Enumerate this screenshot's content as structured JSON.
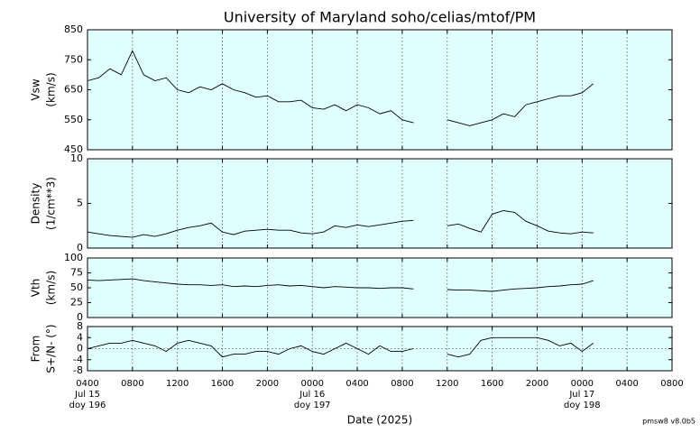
{
  "title": "University of Maryland  soho/celias/mtof/PM",
  "footer": "pmsw8 v8.0b5",
  "chart_data": [
    {
      "type": "line",
      "ylabel": [
        "Vsw",
        "(km/s)"
      ],
      "ylim": [
        450,
        850
      ],
      "yticks": [
        450,
        550,
        650,
        750,
        850
      ],
      "color": "#000000",
      "background": "#e0ffff",
      "x": [
        "2025-07-15 04:00",
        "2025-07-15 05:00",
        "2025-07-15 06:00",
        "2025-07-15 07:00",
        "2025-07-15 08:00",
        "2025-07-15 09:00",
        "2025-07-15 10:00",
        "2025-07-15 11:00",
        "2025-07-15 12:00",
        "2025-07-15 13:00",
        "2025-07-15 14:00",
        "2025-07-15 15:00",
        "2025-07-15 16:00",
        "2025-07-15 17:00",
        "2025-07-15 18:00",
        "2025-07-15 19:00",
        "2025-07-15 20:00",
        "2025-07-15 21:00",
        "2025-07-15 22:00",
        "2025-07-15 23:00",
        "2025-07-16 00:00",
        "2025-07-16 01:00",
        "2025-07-16 02:00",
        "2025-07-16 03:00",
        "2025-07-16 04:00",
        "2025-07-16 05:00",
        "2025-07-16 06:00",
        "2025-07-16 07:00",
        "2025-07-16 08:00",
        "2025-07-16 09:00",
        "2025-07-16 10:00",
        "2025-07-16 11:00",
        "2025-07-16 12:00",
        "2025-07-16 13:00",
        "2025-07-16 14:00",
        "2025-07-16 15:00",
        "2025-07-16 16:00",
        "2025-07-16 17:00",
        "2025-07-16 18:00",
        "2025-07-16 19:00",
        "2025-07-16 20:00",
        "2025-07-16 21:00",
        "2025-07-16 22:00",
        "2025-07-16 23:00",
        "2025-07-17 00:00",
        "2025-07-17 01:00"
      ],
      "values": [
        680,
        690,
        720,
        700,
        780,
        700,
        680,
        690,
        650,
        640,
        660,
        650,
        670,
        650,
        640,
        625,
        630,
        610,
        610,
        615,
        590,
        585,
        600,
        580,
        600,
        590,
        570,
        580,
        550,
        540,
        null,
        null,
        550,
        540,
        530,
        540,
        550,
        570,
        560,
        600,
        610,
        620,
        630,
        630,
        640,
        670
      ]
    },
    {
      "type": "line",
      "ylabel": [
        "Density",
        "(1/cm**3)"
      ],
      "ylim": [
        0,
        10
      ],
      "yticks": [
        0,
        5,
        10
      ],
      "color": "#000000",
      "background": "#e0ffff",
      "x": [
        "2025-07-15 04:00",
        "2025-07-15 05:00",
        "2025-07-15 06:00",
        "2025-07-15 07:00",
        "2025-07-15 08:00",
        "2025-07-15 09:00",
        "2025-07-15 10:00",
        "2025-07-15 11:00",
        "2025-07-15 12:00",
        "2025-07-15 13:00",
        "2025-07-15 14:00",
        "2025-07-15 15:00",
        "2025-07-15 16:00",
        "2025-07-15 17:00",
        "2025-07-15 18:00",
        "2025-07-15 19:00",
        "2025-07-15 20:00",
        "2025-07-15 21:00",
        "2025-07-15 22:00",
        "2025-07-15 23:00",
        "2025-07-16 00:00",
        "2025-07-16 01:00",
        "2025-07-16 02:00",
        "2025-07-16 03:00",
        "2025-07-16 04:00",
        "2025-07-16 05:00",
        "2025-07-16 06:00",
        "2025-07-16 07:00",
        "2025-07-16 08:00",
        "2025-07-16 09:00",
        "2025-07-16 10:00",
        "2025-07-16 11:00",
        "2025-07-16 12:00",
        "2025-07-16 13:00",
        "2025-07-16 14:00",
        "2025-07-16 15:00",
        "2025-07-16 16:00",
        "2025-07-16 17:00",
        "2025-07-16 18:00",
        "2025-07-16 19:00",
        "2025-07-16 20:00",
        "2025-07-16 21:00",
        "2025-07-16 22:00",
        "2025-07-16 23:00",
        "2025-07-17 00:00",
        "2025-07-17 01:00"
      ],
      "values": [
        1.8,
        1.6,
        1.4,
        1.3,
        1.2,
        1.5,
        1.3,
        1.6,
        2.0,
        2.3,
        2.5,
        2.8,
        1.8,
        1.5,
        1.9,
        2.0,
        2.1,
        2.0,
        2.0,
        1.7,
        1.6,
        1.8,
        2.5,
        2.3,
        2.6,
        2.4,
        2.6,
        2.8,
        3.0,
        3.1,
        null,
        null,
        2.5,
        2.7,
        2.2,
        1.8,
        3.8,
        4.2,
        4.0,
        3.0,
        2.5,
        1.9,
        1.7,
        1.6,
        1.8,
        1.7
      ]
    },
    {
      "type": "line",
      "ylabel": [
        "Vth",
        "(km/s)"
      ],
      "ylim": [
        0,
        100
      ],
      "yticks": [
        0,
        25,
        50,
        75,
        100
      ],
      "color": "#000000",
      "background": "#e0ffff",
      "x": [
        "2025-07-15 04:00",
        "2025-07-15 05:00",
        "2025-07-15 06:00",
        "2025-07-15 07:00",
        "2025-07-15 08:00",
        "2025-07-15 09:00",
        "2025-07-15 10:00",
        "2025-07-15 11:00",
        "2025-07-15 12:00",
        "2025-07-15 13:00",
        "2025-07-15 14:00",
        "2025-07-15 15:00",
        "2025-07-15 16:00",
        "2025-07-15 17:00",
        "2025-07-15 18:00",
        "2025-07-15 19:00",
        "2025-07-15 20:00",
        "2025-07-15 21:00",
        "2025-07-15 22:00",
        "2025-07-15 23:00",
        "2025-07-16 00:00",
        "2025-07-16 01:00",
        "2025-07-16 02:00",
        "2025-07-16 03:00",
        "2025-07-16 04:00",
        "2025-07-16 05:00",
        "2025-07-16 06:00",
        "2025-07-16 07:00",
        "2025-07-16 08:00",
        "2025-07-16 09:00",
        "2025-07-16 10:00",
        "2025-07-16 11:00",
        "2025-07-16 12:00",
        "2025-07-16 13:00",
        "2025-07-16 14:00",
        "2025-07-16 15:00",
        "2025-07-16 16:00",
        "2025-07-16 17:00",
        "2025-07-16 18:00",
        "2025-07-16 19:00",
        "2025-07-16 20:00",
        "2025-07-16 21:00",
        "2025-07-16 22:00",
        "2025-07-16 23:00",
        "2025-07-17 00:00",
        "2025-07-17 01:00"
      ],
      "values": [
        63,
        62,
        63,
        64,
        65,
        62,
        60,
        58,
        56,
        55,
        55,
        54,
        55,
        52,
        53,
        52,
        54,
        55,
        53,
        54,
        52,
        50,
        52,
        51,
        50,
        50,
        49,
        50,
        50,
        48,
        null,
        null,
        47,
        46,
        46,
        45,
        44,
        46,
        48,
        49,
        50,
        52,
        53,
        55,
        56,
        62
      ]
    },
    {
      "type": "line",
      "ylabel": [
        "From",
        "S+/N- (°)"
      ],
      "ylim": [
        -8,
        8
      ],
      "yticks": [
        -8,
        -4,
        0,
        4,
        8
      ],
      "hline": 0,
      "color": "#000000",
      "background": "#e0ffff",
      "x": [
        "2025-07-15 04:00",
        "2025-07-15 05:00",
        "2025-07-15 06:00",
        "2025-07-15 07:00",
        "2025-07-15 08:00",
        "2025-07-15 09:00",
        "2025-07-15 10:00",
        "2025-07-15 11:00",
        "2025-07-15 12:00",
        "2025-07-15 13:00",
        "2025-07-15 14:00",
        "2025-07-15 15:00",
        "2025-07-15 16:00",
        "2025-07-15 17:00",
        "2025-07-15 18:00",
        "2025-07-15 19:00",
        "2025-07-15 20:00",
        "2025-07-15 21:00",
        "2025-07-15 22:00",
        "2025-07-15 23:00",
        "2025-07-16 00:00",
        "2025-07-16 01:00",
        "2025-07-16 02:00",
        "2025-07-16 03:00",
        "2025-07-16 04:00",
        "2025-07-16 05:00",
        "2025-07-16 06:00",
        "2025-07-16 07:00",
        "2025-07-16 08:00",
        "2025-07-16 09:00",
        "2025-07-16 10:00",
        "2025-07-16 11:00",
        "2025-07-16 12:00",
        "2025-07-16 13:00",
        "2025-07-16 14:00",
        "2025-07-16 15:00",
        "2025-07-16 16:00",
        "2025-07-16 17:00",
        "2025-07-16 18:00",
        "2025-07-16 19:00",
        "2025-07-16 20:00",
        "2025-07-16 21:00",
        "2025-07-16 22:00",
        "2025-07-16 23:00",
        "2025-07-17 00:00",
        "2025-07-17 01:00"
      ],
      "values": [
        0,
        1,
        2,
        2,
        3,
        2,
        1,
        -1,
        2,
        3,
        2,
        1,
        -3,
        -2,
        -2,
        -1,
        -1,
        -2,
        0,
        1,
        -1,
        -2,
        0,
        2,
        0,
        -2,
        1,
        -1,
        -1,
        0,
        null,
        null,
        -2,
        -3,
        -2,
        3,
        4,
        4,
        4,
        4,
        4,
        3,
        1,
        2,
        -1,
        2
      ],
      "xlabel": "Date (2025)",
      "xlim": [
        "2025-07-15 04:00",
        "2025-07-17 08:00"
      ],
      "xticks": [
        {
          "value": "2025-07-15 04:00",
          "label": "0400"
        },
        {
          "value": "2025-07-15 08:00",
          "label": "0800"
        },
        {
          "value": "2025-07-15 12:00",
          "label": "1200"
        },
        {
          "value": "2025-07-15 16:00",
          "label": "1600"
        },
        {
          "value": "2025-07-15 20:00",
          "label": "2000"
        },
        {
          "value": "2025-07-16 00:00",
          "label": "0000"
        },
        {
          "value": "2025-07-16 04:00",
          "label": "0400"
        },
        {
          "value": "2025-07-16 08:00",
          "label": "0800"
        },
        {
          "value": "2025-07-16 12:00",
          "label": "1200"
        },
        {
          "value": "2025-07-16 16:00",
          "label": "1600"
        },
        {
          "value": "2025-07-16 20:00",
          "label": "2000"
        },
        {
          "value": "2025-07-17 00:00",
          "label": "0000"
        },
        {
          "value": "2025-07-17 04:00",
          "label": "0400"
        },
        {
          "value": "2025-07-17 08:00",
          "label": "0800"
        }
      ],
      "date_labels": [
        {
          "value": "2025-07-15 04:00",
          "label": "Jul 15",
          "doy": "doy 196"
        },
        {
          "value": "2025-07-16 00:00",
          "label": "Jul 16",
          "doy": "doy 197"
        },
        {
          "value": "2025-07-17 00:00",
          "label": "Jul 17",
          "doy": "doy 198"
        }
      ]
    }
  ]
}
